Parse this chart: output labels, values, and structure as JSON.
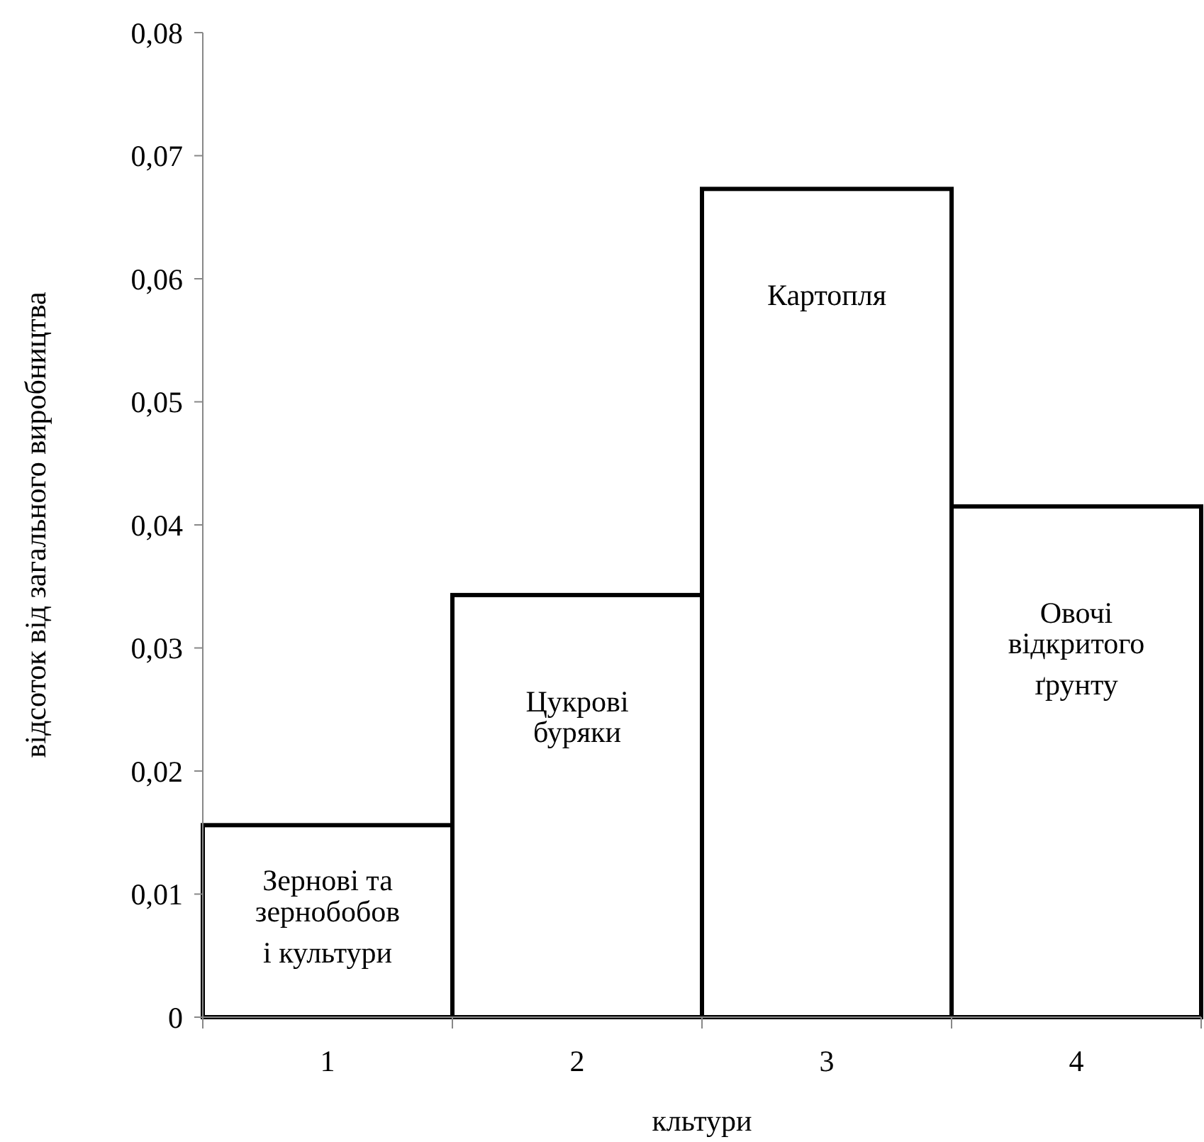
{
  "chart_data": {
    "type": "bar",
    "xlabel": "кльтури",
    "ylabel": "відсоток від загального виробництва",
    "categories": [
      "1",
      "2",
      "3",
      "4"
    ],
    "values": [
      0.0156,
      0.0343,
      0.0673,
      0.0415
    ],
    "color": "#ffffff",
    "ylim": [
      0,
      0.08
    ],
    "yticks": [
      {
        "value": 0,
        "label": "0"
      },
      {
        "value": 0.01,
        "label": "0,01"
      },
      {
        "value": 0.02,
        "label": "0,02"
      },
      {
        "value": 0.03,
        "label": "0,03"
      },
      {
        "value": 0.04,
        "label": "0,04"
      },
      {
        "value": 0.05,
        "label": "0,05"
      },
      {
        "value": 0.06,
        "label": "0,06"
      },
      {
        "value": 0.07,
        "label": "0,07"
      },
      {
        "value": 0.08,
        "label": "0,08"
      }
    ],
    "grid": false,
    "annotations": [
      "Зернові та\nзернобобов\nі культури",
      "Цукрові\nбуряки",
      "Картопля",
      "Овочі\nвідкритого\nґрунту"
    ]
  }
}
